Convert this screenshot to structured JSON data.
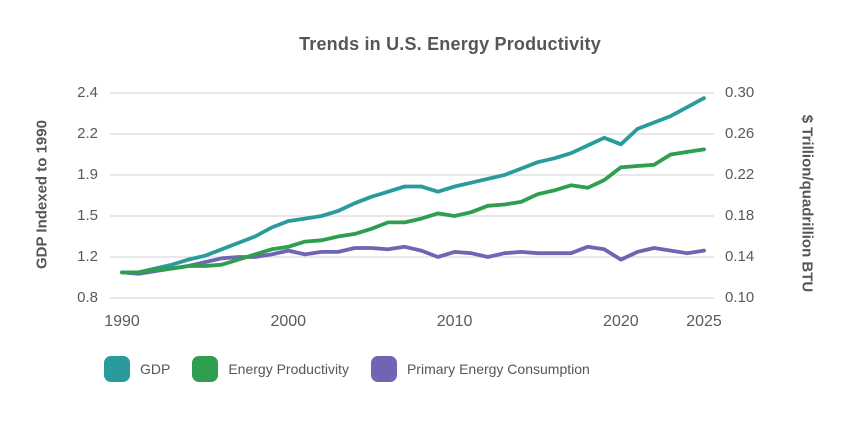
{
  "title": "Trends in U.S. Energy Productivity",
  "axes": {
    "left": {
      "title": "GDP Indexed to 1990",
      "ticks": [
        "2.4",
        "2.2",
        "1.9",
        "1.5",
        "1.2",
        "0.8"
      ]
    },
    "right": {
      "title": "$ Trillion/quadrillion BTU",
      "ticks": [
        "0.30",
        "0.26",
        "0.22",
        "0.18",
        "0.14",
        "0.10"
      ]
    },
    "x": {
      "ticks": [
        "1990",
        "2000",
        "2010",
        "2020",
        "2025"
      ]
    }
  },
  "legend": [
    {
      "label": "GDP",
      "color": "#2A9B9C"
    },
    {
      "label": "Energy Productivity",
      "color": "#2F9E4F"
    },
    {
      "label": "Primary Energy Consumption",
      "color": "#7164B4"
    }
  ],
  "colors": {
    "teal": "#2A9B9C",
    "green": "#2F9E4F",
    "purple": "#7164B4",
    "text": "#54565B",
    "tick_text": "#595A5E",
    "gridline": "#DBDBDB",
    "background": "#FFFFFF"
  },
  "chart_data": {
    "type": "line",
    "title": "Trends in U.S. Energy Productivity",
    "x": [
      1990,
      1991,
      1992,
      1993,
      1994,
      1995,
      1996,
      1997,
      1998,
      1999,
      2000,
      2001,
      2002,
      2003,
      2004,
      2005,
      2006,
      2007,
      2008,
      2009,
      2010,
      2011,
      2012,
      2013,
      2014,
      2015,
      2016,
      2017,
      2018,
      2019,
      2020,
      2021,
      2022,
      2023,
      2024,
      2025
    ],
    "series": [
      {
        "name": "GDP",
        "id": "gdp",
        "color": "#2A9B9C",
        "values": [
          1.0,
          1.0,
          1.03,
          1.06,
          1.1,
          1.13,
          1.18,
          1.23,
          1.28,
          1.35,
          1.4,
          1.42,
          1.44,
          1.48,
          1.54,
          1.59,
          1.63,
          1.67,
          1.67,
          1.63,
          1.67,
          1.7,
          1.73,
          1.76,
          1.81,
          1.86,
          1.89,
          1.93,
          1.99,
          2.05,
          2.0,
          2.12,
          2.17,
          2.22,
          2.29,
          2.36
        ]
      },
      {
        "name": "Energy Productivity",
        "id": "energy-productivity",
        "color": "#2F9E4F",
        "values": [
          1.0,
          1.0,
          1.02,
          1.03,
          1.05,
          1.05,
          1.06,
          1.1,
          1.14,
          1.18,
          1.2,
          1.24,
          1.25,
          1.28,
          1.3,
          1.34,
          1.39,
          1.39,
          1.42,
          1.46,
          1.44,
          1.47,
          1.52,
          1.53,
          1.55,
          1.61,
          1.64,
          1.68,
          1.66,
          1.72,
          1.82,
          1.83,
          1.84,
          1.92,
          1.94,
          1.96
        ]
      },
      {
        "name": "Primary Energy Consumption",
        "id": "primary-energy-consumption",
        "color": "#7164B4",
        "values": [
          1.0,
          0.99,
          1.01,
          1.03,
          1.05,
          1.08,
          1.11,
          1.12,
          1.12,
          1.14,
          1.17,
          1.14,
          1.16,
          1.16,
          1.19,
          1.19,
          1.18,
          1.2,
          1.17,
          1.12,
          1.16,
          1.15,
          1.12,
          1.15,
          1.16,
          1.15,
          1.15,
          1.15,
          1.2,
          1.18,
          1.1,
          1.16,
          1.19,
          1.17,
          1.15,
          1.17
        ]
      }
    ],
    "xlabel": "",
    "ylabel_left": "GDP Indexed to 1990",
    "ylabel_right": "$ Trillion/quadrillion BTU",
    "xlim": [
      1990,
      2025
    ],
    "ylim_left": [
      0.8,
      2.4
    ],
    "ylim_right": [
      0.1,
      0.3
    ],
    "x_tick_labels": [
      "1990",
      "2000",
      "2010",
      "2020",
      "2025"
    ],
    "y_left_tick_labels": [
      "2.4",
      "2.2",
      "1.9",
      "1.5",
      "1.2",
      "0.8"
    ],
    "y_right_tick_labels": [
      "0.30",
      "0.26",
      "0.22",
      "0.18",
      "0.14",
      "0.10"
    ],
    "grid": "horizontal",
    "legend_position": "bottom"
  }
}
